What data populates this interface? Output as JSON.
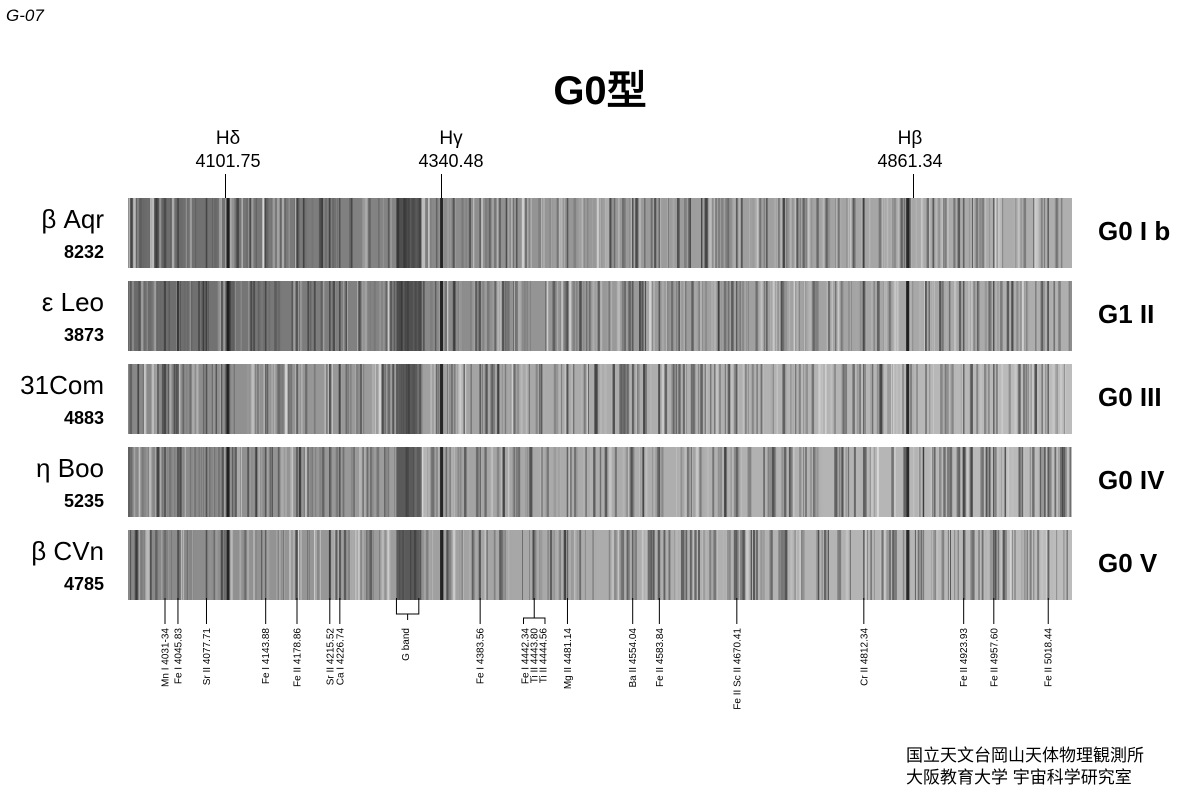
{
  "sheet_id": "G-07",
  "title": "G0型",
  "hydrogen_lines": [
    {
      "name": "Hδ",
      "wavelength": "4101.75",
      "value": 4101.75
    },
    {
      "name": "Hγ",
      "wavelength": "4340.48",
      "value": 4340.48
    },
    {
      "name": "Hβ",
      "wavelength": "4861.34",
      "value": 4861.34
    }
  ],
  "spectrum_range": [
    3990,
    5045
  ],
  "stars": [
    {
      "name": "β Aqr",
      "hd": "8232",
      "spectral_class": "G0 I b"
    },
    {
      "name": "ε Leo",
      "hd": "3873",
      "spectral_class": "G1 II"
    },
    {
      "name": "31Com",
      "hd": "4883",
      "spectral_class": "G0 III"
    },
    {
      "name": "η Boo",
      "hd": "5235",
      "spectral_class": "G0 IV"
    },
    {
      "name": "β CVn",
      "hd": "4785",
      "spectral_class": "G0 V"
    }
  ],
  "line_labels": [
    {
      "wavelength": 4031.34,
      "lines": [
        "Mn I  4031-34"
      ]
    },
    {
      "wavelength": 4045.83,
      "lines": [
        "Fe I  4045.83"
      ]
    },
    {
      "wavelength": 4077.71,
      "lines": [
        "Sr II  4077.71"
      ]
    },
    {
      "wavelength": 4143.88,
      "lines": [
        "Fe I  4143.88"
      ]
    },
    {
      "wavelength": 4178.86,
      "lines": [
        "Fe II  4178.86"
      ]
    },
    {
      "wavelength": 4215.52,
      "lines": [
        "Sr II  4215.52"
      ]
    },
    {
      "wavelength": 4226.74,
      "lines": [
        "Ca I  4226.74"
      ]
    },
    {
      "wavelength": 4300,
      "lines": [
        "G band"
      ],
      "bracket": [
        4290,
        4315
      ]
    },
    {
      "wavelength": 4383.56,
      "lines": [
        "Fe I  4383.56"
      ]
    },
    {
      "wavelength": 4443.5,
      "lines": [
        "Fe I  4442.34",
        "Ti II  4443.80",
        "Ti II  4444.56"
      ],
      "bracket": [
        4432,
        4456
      ]
    },
    {
      "wavelength": 4481.14,
      "lines": [
        "Mg II  4481.14"
      ]
    },
    {
      "wavelength": 4554.04,
      "lines": [
        "Ba II  4554.04"
      ]
    },
    {
      "wavelength": 4583.84,
      "lines": [
        "Fe II  4583.84"
      ]
    },
    {
      "wavelength": 4670.41,
      "lines": [
        "Fe II  Sc II  4670.41"
      ]
    },
    {
      "wavelength": 4812.34,
      "lines": [
        "Cr II  4812.34"
      ]
    },
    {
      "wavelength": 4923.93,
      "lines": [
        "Fe II  4923.93"
      ]
    },
    {
      "wavelength": 4957.6,
      "lines": [
        "Fe II  4957.60"
      ]
    },
    {
      "wavelength": 5018.44,
      "lines": [
        "Fe II  5018.44"
      ]
    }
  ],
  "credits": [
    "国立天文台岡山天体物理観測所",
    "大阪教育大学 宇宙科学研究室"
  ]
}
